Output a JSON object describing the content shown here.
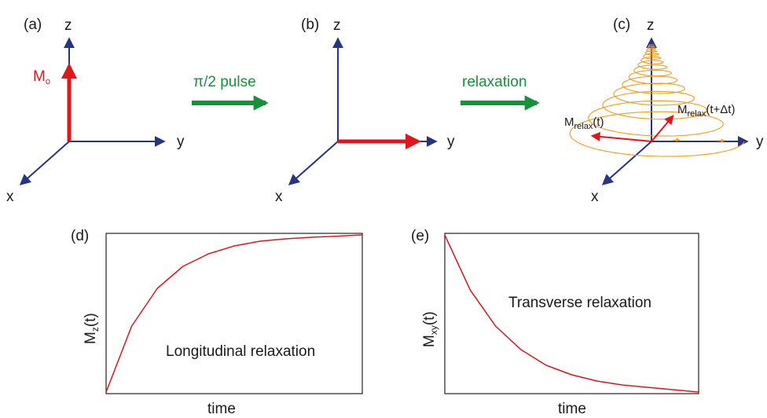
{
  "panels": {
    "a": {
      "tag": "(a)",
      "axis_x": "x",
      "axis_y": "y",
      "axis_z": "z",
      "vector_label": "M",
      "vector_sub": "o"
    },
    "b": {
      "tag": "(b)",
      "axis_x": "x",
      "axis_y": "y",
      "axis_z": "z"
    },
    "c": {
      "tag": "(c)",
      "axis_x": "x",
      "axis_y": "y",
      "axis_z": "z",
      "m1_main": "M",
      "m1_sub": "relax",
      "m1_arg": "(t)",
      "m2_main": "M",
      "m2_sub": "relax",
      "m2_arg": "(t+Δt)"
    },
    "d": {
      "tag": "(d)",
      "ylabel_main": "M",
      "ylabel_sub": "z",
      "ylabel_arg": "(t)",
      "xlabel": "time",
      "annotation": "Longitudinal relaxation"
    },
    "e": {
      "tag": "(e)",
      "ylabel_main": "M",
      "ylabel_sub": "xy",
      "ylabel_arg": "(t)",
      "xlabel": "time",
      "annotation": "Transverse relaxation"
    }
  },
  "arrows": {
    "pulse_label": "π/2 pulse",
    "relax_label": "relaxation"
  },
  "colors": {
    "axis": "#27347f",
    "vector": "#e0161b",
    "step_arrow": "#17913a",
    "spiral": "#f39c1e",
    "curve": "#d9161f"
  },
  "chart_data": [
    {
      "type": "line",
      "x": [
        0,
        0.1,
        0.2,
        0.3,
        0.4,
        0.5,
        0.6,
        0.7,
        0.8,
        0.9,
        1.0
      ],
      "values": [
        0.0,
        0.42,
        0.66,
        0.8,
        0.88,
        0.93,
        0.96,
        0.975,
        0.985,
        0.992,
        1.0
      ],
      "xlabel": "time",
      "ylabel": "Mz(t)",
      "title": ""
    },
    {
      "type": "line",
      "x": [
        0,
        0.1,
        0.2,
        0.3,
        0.4,
        0.5,
        0.6,
        0.7,
        0.8,
        0.9,
        1.0
      ],
      "values": [
        1.0,
        0.65,
        0.42,
        0.27,
        0.17,
        0.11,
        0.07,
        0.045,
        0.03,
        0.015,
        0.0
      ],
      "xlabel": "time",
      "ylabel": "Mxy(t)",
      "title": ""
    }
  ]
}
